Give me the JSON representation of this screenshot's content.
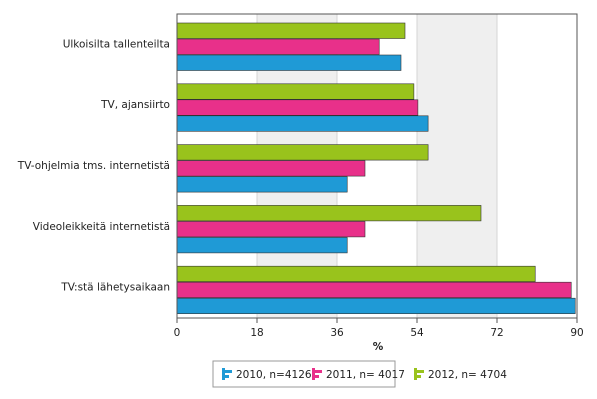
{
  "chart_data": {
    "type": "hbar",
    "categories": [
      "Ulkoisilta tallenteilta",
      "TV, ajansiirto",
      "TV-ohjelmia tms. internetistä",
      "Videoleikkeitä internetistä",
      "TV:stä lähetysaikaan"
    ],
    "series": [
      {
        "name": "2010, n=4126",
        "color": "#1f9ad6",
        "values": [
          50.4,
          56.5,
          38.3,
          38.3,
          89.6
        ]
      },
      {
        "name": "2011, n= 4017",
        "color": "#e8308a",
        "values": [
          45.5,
          54.2,
          42.3,
          42.3,
          88.7
        ]
      },
      {
        "name": "2012, n= 4704",
        "color": "#99c31c",
        "values": [
          51.3,
          53.3,
          56.5,
          68.4,
          80.6
        ]
      }
    ],
    "xlabel": "%",
    "xlim": [
      0,
      90
    ],
    "xticks": [
      0,
      18,
      36,
      54,
      72,
      90
    ],
    "grid": true
  }
}
